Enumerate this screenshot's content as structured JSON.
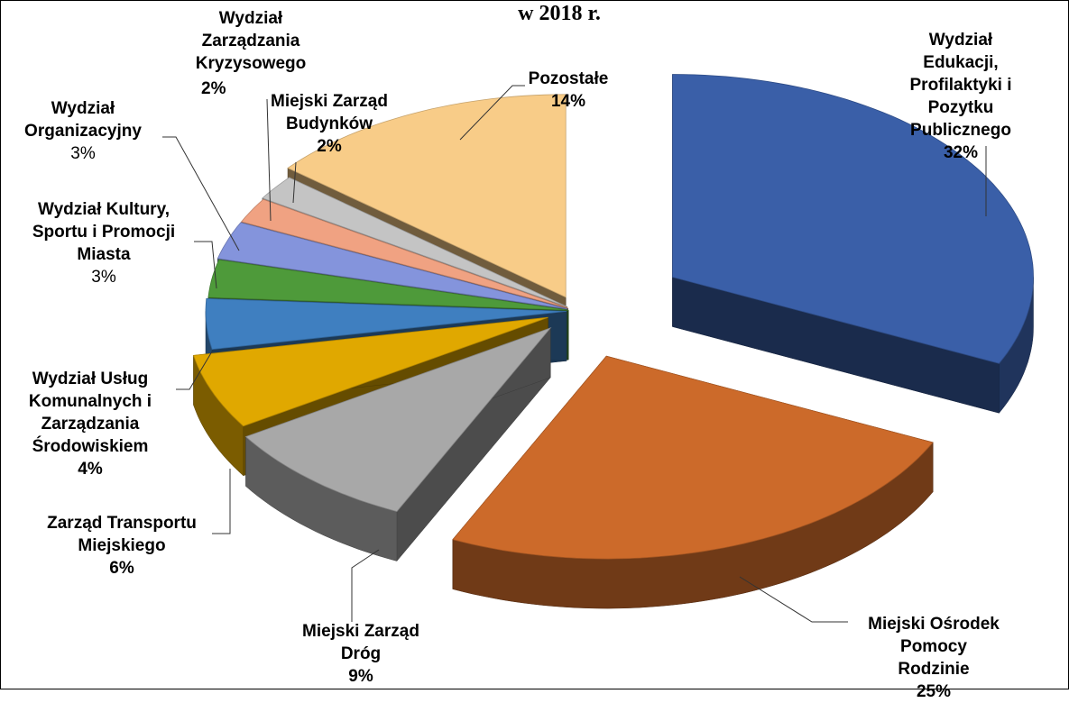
{
  "chart_data": {
    "type": "pie",
    "title": "w 2018 r.",
    "categories": [
      "Wydział Edukacji,\nProfilaktyki i\nPozytku\nPublicznego",
      "Miejski Ośrodek\nPomocy Rodzinie",
      "Miejski Zarząd\nDróg",
      "Zarząd Transportu\nMiejskiego",
      "Wydział Usług\nKomunalnych i\nZarządzania\nŚrodowiskiem",
      "Wydział Kultury,\nSportu i Promocji\nMiasta",
      "Wydział\nOrganizacyjny",
      "Wydział\nZarządzania\nKryzysowego",
      "Miejski Zarząd\nBudynków",
      "Pozostałe"
    ],
    "values": [
      32,
      25,
      9,
      6,
      4,
      3,
      3,
      2,
      2,
      14
    ],
    "value_labels": [
      "32%",
      "25%",
      "9%",
      "6%",
      "4%",
      "3%",
      "3%",
      "2%",
      "2%",
      "14%"
    ],
    "colors": [
      "#3a5fa8",
      "#cc6a2a",
      "#a8a8a8",
      "#e0a800",
      "#3f7fc0",
      "#4e9a3a",
      "#8494dc",
      "#f0a282",
      "#c4c4c4",
      "#f8cc88"
    ]
  }
}
